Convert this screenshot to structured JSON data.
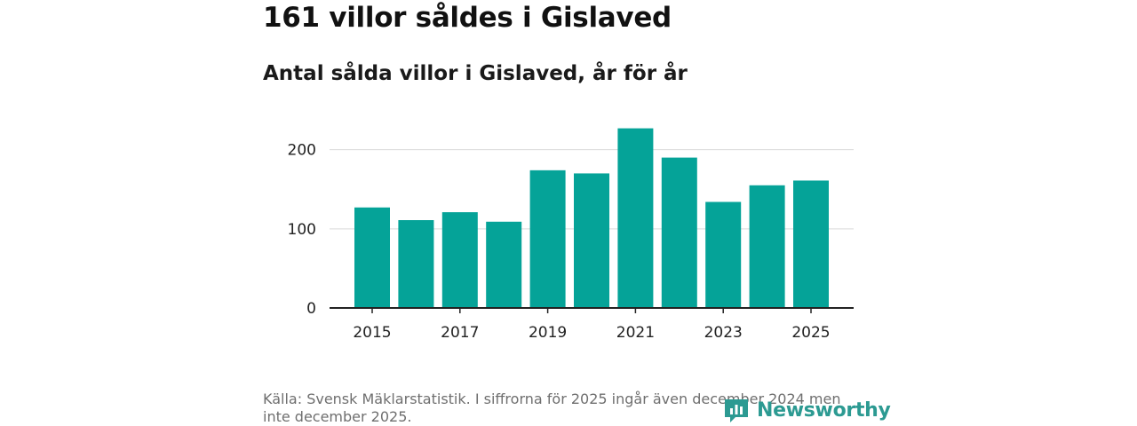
{
  "chart_data": {
    "type": "bar",
    "title": "161 villor såldes i Gislaved",
    "subtitle": "Antal sålda villor i Gislaved, år för år",
    "categories": [
      "2015",
      "2016",
      "2017",
      "2018",
      "2019",
      "2020",
      "2021",
      "2022",
      "2023",
      "2024",
      "2025"
    ],
    "values": [
      127,
      111,
      121,
      109,
      174,
      170,
      227,
      190,
      134,
      155,
      161
    ],
    "y_ticks": [
      "0",
      "100",
      "200"
    ],
    "x_tick_labels": [
      "2015",
      "2017",
      "2019",
      "2021",
      "2023",
      "2025"
    ],
    "ylim": [
      0,
      240
    ],
    "xlabel": "",
    "ylabel": "",
    "grid": true,
    "bar_color": "#05a398",
    "source": "Källa: Svensk Mäklarstatistik. I siffrorna för 2025 ingår även december 2024 men inte december 2025."
  },
  "logo": {
    "text": "Newsworthy",
    "icon": "newsworthy-logo-icon",
    "color": "#2c9a92"
  }
}
